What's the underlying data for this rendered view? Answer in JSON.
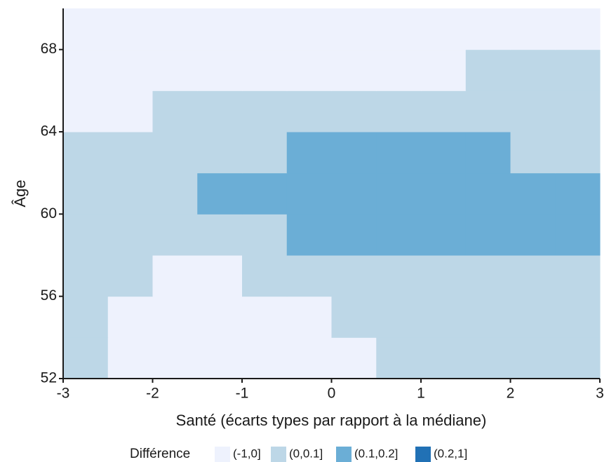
{
  "chart_data": {
    "type": "heatmap",
    "xlabel": "Santé (écarts types par rapport à la médiane)",
    "ylabel": "Âge",
    "legend_title": "Différence",
    "series": [
      {
        "name": "(-1,0]",
        "color": "#eef2fd"
      },
      {
        "name": "(0,0.1]",
        "color": "#bdd7e7"
      },
      {
        "name": "(0.1,0.2]",
        "color": "#6baed6"
      },
      {
        "name": "(0.2,1]",
        "color": "#2171b5"
      }
    ],
    "x_edges": [
      -3,
      -2.5,
      -2,
      -1.5,
      -1,
      -0.5,
      0,
      0.5,
      1,
      1.5,
      2,
      2.5,
      3
    ],
    "y_edges": [
      52,
      54,
      56,
      58,
      60,
      62,
      64,
      66,
      68,
      70
    ],
    "z": [
      [
        1,
        0,
        0,
        0,
        0,
        0,
        0,
        1,
        1,
        1,
        1,
        1
      ],
      [
        1,
        0,
        0,
        0,
        0,
        0,
        1,
        1,
        1,
        1,
        1,
        1
      ],
      [
        1,
        1,
        0,
        0,
        1,
        1,
        1,
        1,
        1,
        1,
        1,
        1
      ],
      [
        1,
        1,
        1,
        1,
        1,
        2,
        2,
        2,
        2,
        2,
        2,
        2
      ],
      [
        1,
        1,
        1,
        2,
        2,
        2,
        2,
        2,
        2,
        2,
        2,
        2
      ],
      [
        1,
        1,
        1,
        1,
        1,
        2,
        2,
        2,
        2,
        2,
        1,
        1
      ],
      [
        0,
        0,
        1,
        1,
        1,
        1,
        1,
        1,
        1,
        1,
        1,
        1
      ],
      [
        0,
        0,
        0,
        0,
        0,
        0,
        0,
        0,
        0,
        1,
        1,
        1
      ],
      [
        0,
        0,
        0,
        0,
        0,
        0,
        0,
        0,
        0,
        0,
        0,
        0
      ]
    ],
    "xlim": [
      -3,
      3
    ],
    "ylim": [
      52,
      70
    ],
    "xticks": [
      -3,
      -2,
      -1,
      0,
      1,
      2,
      3
    ],
    "yticks": [
      52,
      56,
      60,
      64,
      68
    ]
  }
}
